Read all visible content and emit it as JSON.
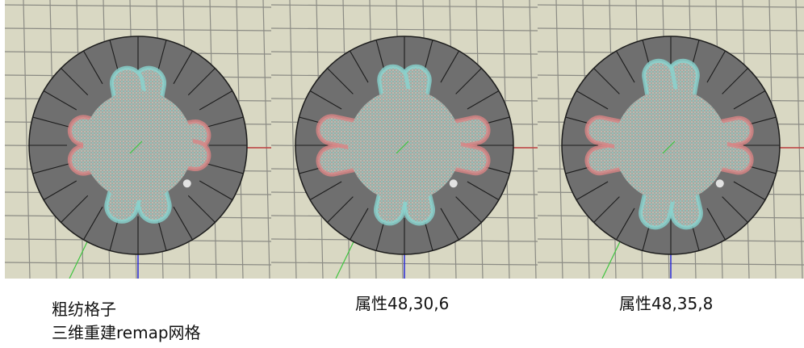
{
  "panels": [
    {
      "caption_lines": [
        "粗纺格子",
        "三维重建remap网格"
      ],
      "variant": 1
    },
    {
      "caption_lines": [
        "属性48,30,6"
      ],
      "variant": 2
    },
    {
      "caption_lines": [
        "属性48,35,8"
      ],
      "variant": 3
    }
  ],
  "colors": {
    "viewport_bg": "#d9d8c3",
    "grid_line": "#8b8b84",
    "ring_fill": "#6f6f6f",
    "ring_edge": "#1c1c1c",
    "gear_red": "#d98585",
    "gear_cyan": "#88d4cf",
    "axis_red": "#c44242",
    "axis_green": "#3fc43f",
    "axis_blue": "#2a2ad8"
  }
}
